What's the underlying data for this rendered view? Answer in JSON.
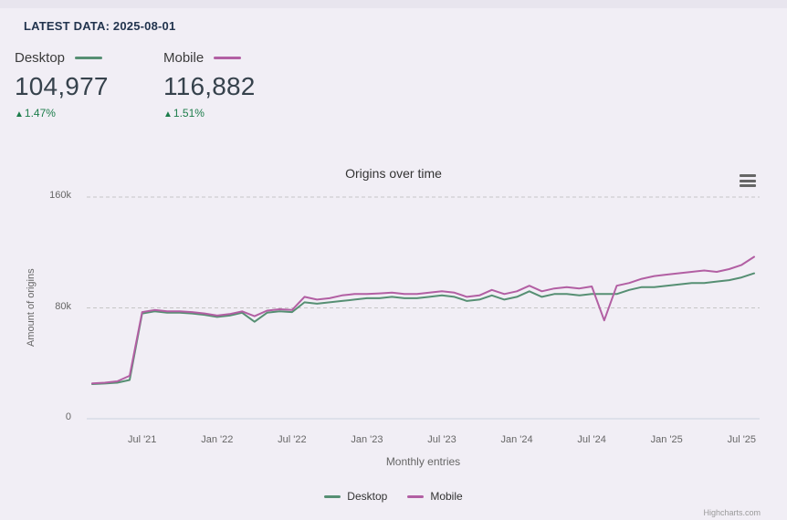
{
  "header": {
    "latest_data": "LATEST DATA: 2025-08-01"
  },
  "stats": {
    "desktop": {
      "label": "Desktop",
      "value": "104,977",
      "arrow": "▲",
      "change": "1.47%",
      "color": "#568f73"
    },
    "mobile": {
      "label": "Mobile",
      "value": "116,882",
      "arrow": "▲",
      "change": "1.51%",
      "color": "#b25fa3"
    }
  },
  "chart_data": {
    "type": "line",
    "title": "Origins over time",
    "xlabel": "Monthly entries",
    "ylabel": "Amount of origins",
    "ylim": [
      0,
      160000
    ],
    "grid": "dashed-horizontal",
    "legend_position": "bottom",
    "credit": "Highcharts.com",
    "y_ticks": [
      0,
      80000,
      160000
    ],
    "y_tick_labels": [
      "0",
      "80k",
      "160k"
    ],
    "x_ticks": [
      4,
      10,
      16,
      22,
      28,
      34,
      40,
      46,
      52
    ],
    "x_tick_labels": [
      "Jul '21",
      "Jan '22",
      "Jul '22",
      "Jan '23",
      "Jul '23",
      "Jan '24",
      "Jul '24",
      "Jan '25",
      "Jul '25"
    ],
    "x": [
      "2021-03",
      "2021-04",
      "2021-05",
      "2021-06",
      "2021-07",
      "2021-08",
      "2021-09",
      "2021-10",
      "2021-11",
      "2021-12",
      "2022-01",
      "2022-02",
      "2022-03",
      "2022-04",
      "2022-05",
      "2022-06",
      "2022-07",
      "2022-08",
      "2022-09",
      "2022-10",
      "2022-11",
      "2022-12",
      "2023-01",
      "2023-02",
      "2023-03",
      "2023-04",
      "2023-05",
      "2023-06",
      "2023-07",
      "2023-08",
      "2023-09",
      "2023-10",
      "2023-11",
      "2023-12",
      "2024-01",
      "2024-02",
      "2024-03",
      "2024-04",
      "2024-05",
      "2024-06",
      "2024-07",
      "2024-08",
      "2024-09",
      "2024-10",
      "2024-11",
      "2024-12",
      "2025-01",
      "2025-02",
      "2025-03",
      "2025-04",
      "2025-05",
      "2025-06",
      "2025-07",
      "2025-08"
    ],
    "series": [
      {
        "name": "Desktop",
        "color": "#568f73",
        "values": [
          25000,
          25400,
          26000,
          28000,
          76000,
          77500,
          76500,
          76500,
          76000,
          75000,
          73500,
          74500,
          76500,
          70000,
          76500,
          77500,
          77000,
          84000,
          83000,
          84000,
          85000,
          86000,
          87000,
          87000,
          88000,
          87000,
          87000,
          88000,
          89000,
          88000,
          85000,
          86000,
          89000,
          86000,
          88000,
          92000,
          88000,
          90000,
          90000,
          89000,
          90000,
          90000,
          90000,
          93000,
          95000,
          95000,
          96000,
          97000,
          98000,
          98000,
          99000,
          100000,
          102000,
          104977
        ]
      },
      {
        "name": "Mobile",
        "color": "#b25fa3",
        "values": [
          25500,
          26000,
          27000,
          31000,
          77000,
          78500,
          77500,
          77500,
          77000,
          76000,
          74500,
          75500,
          77500,
          74000,
          78000,
          79000,
          78500,
          88000,
          86000,
          87000,
          89000,
          90000,
          90000,
          90500,
          91000,
          90000,
          90000,
          91000,
          92000,
          91000,
          88000,
          89000,
          93000,
          90000,
          92000,
          96000,
          92000,
          94000,
          95000,
          94000,
          95500,
          71000,
          96000,
          98000,
          101000,
          103000,
          104000,
          105000,
          106000,
          107000,
          106000,
          108000,
          111000,
          116882
        ]
      }
    ]
  }
}
